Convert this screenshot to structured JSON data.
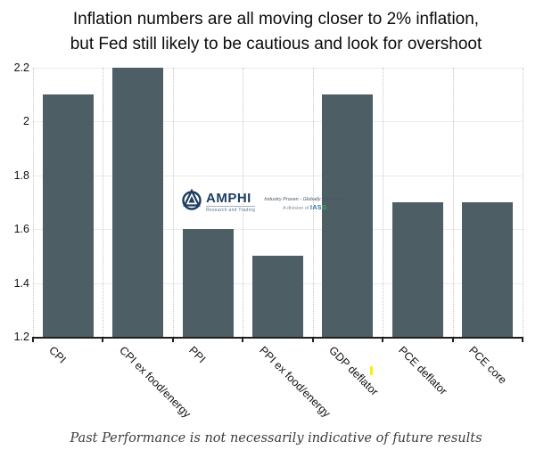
{
  "title": {
    "line1": "Inflation numbers are all moving closer to 2% inflation,",
    "line2": "but Fed still likely to be cautious and look for overshoot"
  },
  "chart_data": {
    "type": "bar",
    "title": "Inflation numbers are all moving closer to 2% inflation, but Fed still likely to be cautious and look for overshoot",
    "categories": [
      "CPI",
      "CPI ex food/energy",
      "PPI",
      "PPI ex food/energy",
      "GDP deflator",
      "PCE deflator",
      "PCE core"
    ],
    "values": [
      2.1,
      2.2,
      1.6,
      1.5,
      2.1,
      1.7,
      1.7
    ],
    "xlabel": "",
    "ylabel": "",
    "ylim": [
      1.2,
      2.2
    ],
    "yticks": [
      "2.2",
      "2",
      "1.8",
      "1.6",
      "1.4",
      "1.2"
    ],
    "grid": true,
    "legend": "none",
    "bar_color": "#4d5f64"
  },
  "watermark": {
    "brand": "AMPHI",
    "brand_subtitle": "Research and Trading",
    "tagline": "Industry Proven - Globally Connected",
    "division_prefix": "A division of ",
    "division_brand_blue": "IAS",
    "division_brand_green": "G"
  },
  "footer": {
    "disclaimer": "Past Performance is not necessarily indicative of future results"
  },
  "colors": {
    "bar": "#4d5f64",
    "logo_navy": "#1d3d5f",
    "iasg_blue": "#2f6fad",
    "iasg_green": "#3fae49",
    "highlight_yellow": "#ffee00",
    "gridline": "#ececec",
    "axis": "#1f1f1f"
  }
}
